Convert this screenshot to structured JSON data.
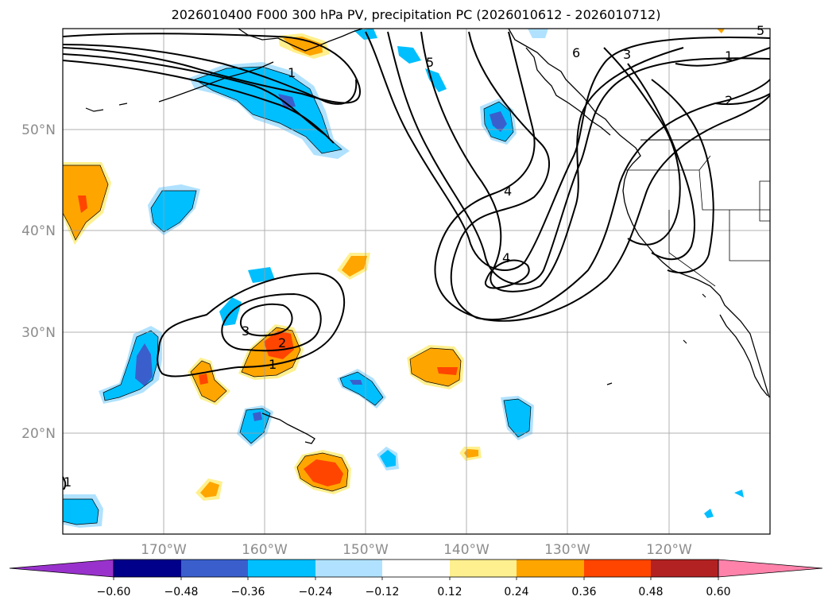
{
  "title": "2026010400 F000 300 hPa PV, precipitation PC (2026010612 - 2026010712)",
  "map": {
    "projection": "PlateCarree",
    "lon_range": [
      -180,
      -110
    ],
    "lat_range": [
      10,
      60
    ],
    "lat_ticks": [
      {
        "value": 50,
        "label": "50°N"
      },
      {
        "value": 40,
        "label": "40°N"
      },
      {
        "value": 30,
        "label": "30°N"
      },
      {
        "value": 20,
        "label": "20°N"
      }
    ],
    "lon_ticks": [
      {
        "value": -170,
        "label": "170°W"
      },
      {
        "value": -160,
        "label": "160°W"
      },
      {
        "value": -150,
        "label": "150°W"
      },
      {
        "value": -140,
        "label": "140°W"
      },
      {
        "value": -130,
        "label": "130°W"
      },
      {
        "value": -120,
        "label": "120°W"
      }
    ],
    "grid": true
  },
  "colorbar": {
    "levels": [
      "−0.60",
      "−0.48",
      "−0.36",
      "−0.24",
      "−0.12",
      "0.12",
      "0.24",
      "0.36",
      "0.48",
      "0.60"
    ],
    "colors": [
      "#9932cc",
      "#00008b",
      "#3a5fcd",
      "#00bfff",
      "#b0e2ff",
      "#ffffff",
      "#fff08f",
      "#ffa500",
      "#ff4500",
      "#b22222",
      "#ff82ab"
    ],
    "extend": "both"
  },
  "pv_contour_labels": [
    {
      "text": "1",
      "lon": -156.9,
      "lat": 55.9
    },
    {
      "text": "5",
      "lon": -143.6,
      "lat": 56.7
    },
    {
      "text": "6",
      "lon": -129.1,
      "lat": 57.4
    },
    {
      "text": "3",
      "lon": -124.1,
      "lat": 57.2
    },
    {
      "text": "1",
      "lon": -116.1,
      "lat": 56.8
    },
    {
      "text": "2",
      "lon": -116.1,
      "lat": 53.7
    },
    {
      "text": "4",
      "lon": -138.1,
      "lat": 43.9
    },
    {
      "text": "4",
      "lon": -139.8,
      "lat": 37.1
    },
    {
      "text": "3",
      "lon": -164.2,
      "lat": 30.0
    },
    {
      "text": "2",
      "lon": -160.2,
      "lat": 28.8
    },
    {
      "text": "1",
      "lon": -161.3,
      "lat": 27.1
    },
    {
      "text": "5",
      "lon": -110.0,
      "lat": 59.5
    },
    {
      "text": "1",
      "lon": -179.7,
      "lat": 14.7
    }
  ],
  "precip_regions": [
    {
      "value": -0.3,
      "color": "#00bfff",
      "center": [
        -155.5,
        54.0
      ]
    },
    {
      "value": 0.3,
      "color": "#ffa500",
      "center": [
        -178.0,
        42.5
      ]
    },
    {
      "value": -0.3,
      "color": "#00bfff",
      "center": [
        -169.0,
        41.8
      ]
    },
    {
      "value": 0.3,
      "color": "#ffa500",
      "center": [
        -160.0,
        28.5
      ]
    },
    {
      "value": -0.4,
      "color": "#3a5fcd",
      "center": [
        -173.0,
        26.5
      ]
    },
    {
      "value": 0.4,
      "color": "#ff4500",
      "center": [
        -155.5,
        15.8
      ]
    },
    {
      "value": 0.3,
      "color": "#ffa500",
      "center": [
        -142.6,
        27.5
      ]
    },
    {
      "value": -0.4,
      "color": "#3a5fcd",
      "center": [
        -137.0,
        51.5
      ]
    },
    {
      "value": -0.3,
      "color": "#00bfff",
      "center": [
        -176.0,
        12.0
      ]
    }
  ]
}
